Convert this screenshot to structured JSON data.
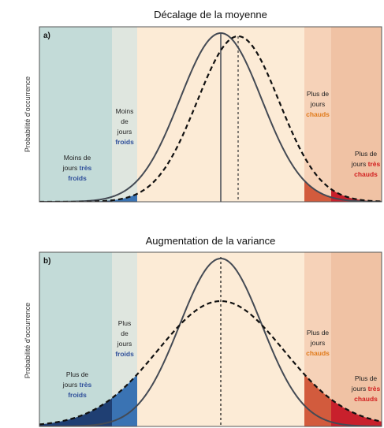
{
  "panels": [
    {
      "id": "a",
      "title": "Décalage de la moyenne",
      "tag": "a)",
      "ylabel": "Probabilité d'occurrence",
      "labels": {
        "very_cold": {
          "line1": "Moins de",
          "line2a": "jours ",
          "line2b": "très",
          "line3": "froids"
        },
        "cold": {
          "line1": "Moins",
          "line2": "de",
          "line3": "jours",
          "line4": "froids"
        },
        "hot": {
          "line1": "Plus de",
          "line2": "jours",
          "line3": "chauds"
        },
        "very_hot": {
          "line1": "Plus de",
          "line2a": "jours ",
          "line2b": "très",
          "line3": "chauds"
        }
      }
    },
    {
      "id": "b",
      "title": "Augmentation de la variance",
      "tag": "b)",
      "ylabel": "Probabilité d'occurrence",
      "labels": {
        "very_cold": {
          "line1": "Plus de",
          "line2a": "jours ",
          "line2b": "très",
          "line3": "froids"
        },
        "cold": {
          "line1": "Plus",
          "line2": "de",
          "line3": "jours",
          "line4": "froids"
        },
        "hot": {
          "line1": "Plus de",
          "line2": "jours",
          "line3": "chauds"
        },
        "very_hot": {
          "line1": "Plus de",
          "line2a": "jours ",
          "line2b": "très",
          "line3": "chauds"
        }
      }
    }
  ],
  "colors": {
    "very_cold_zone": "#c3dbd8",
    "cold_zone": "#dfe6df",
    "middle_zone": "#fcebd6",
    "hot_zone": "#f6d2b8",
    "very_hot_zone": "#f0c2a4",
    "cold_fill": "#3a73b3",
    "very_cold_fill": "#1f3f73",
    "hot_fill": "#d25b3d",
    "very_hot_fill": "#c8202c",
    "solid_curve": "#444a54",
    "dashed_curve": "#111111"
  }
}
